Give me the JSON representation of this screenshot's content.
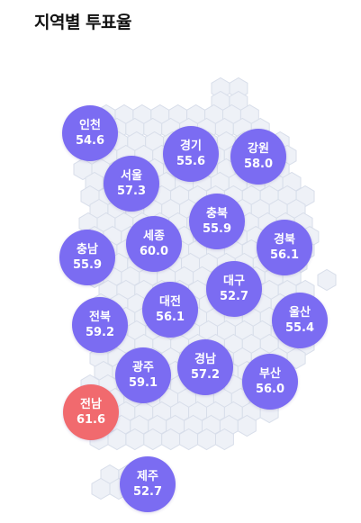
{
  "title": "지역별 투표율",
  "colors": {
    "default": "#7b6cf2",
    "highlight": "#f16a6e",
    "hex_fill": "#eef1f7",
    "hex_stroke": "#d8deea"
  },
  "regions": {
    "incheon": {
      "name": "인천",
      "value": "54.6"
    },
    "gyeonggi": {
      "name": "경기",
      "value": "55.6"
    },
    "gangwon": {
      "name": "강원",
      "value": "58.0"
    },
    "seoul": {
      "name": "서울",
      "value": "57.3"
    },
    "chungbuk": {
      "name": "충북",
      "value": "55.9"
    },
    "chungnam": {
      "name": "충남",
      "value": "55.9"
    },
    "sejong": {
      "name": "세종",
      "value": "60.0"
    },
    "gyeongbuk": {
      "name": "경북",
      "value": "56.1"
    },
    "daegu": {
      "name": "대구",
      "value": "52.7"
    },
    "daejeon": {
      "name": "대전",
      "value": "56.1"
    },
    "jeonbuk": {
      "name": "전북",
      "value": "59.2"
    },
    "ulsan": {
      "name": "울산",
      "value": "55.4"
    },
    "gyeongnam": {
      "name": "경남",
      "value": "57.2"
    },
    "gwangju": {
      "name": "광주",
      "value": "59.1"
    },
    "busan": {
      "name": "부산",
      "value": "56.0"
    },
    "jeonnam": {
      "name": "전남",
      "value": "61.6"
    },
    "jeju": {
      "name": "제주",
      "value": "52.7"
    }
  }
}
